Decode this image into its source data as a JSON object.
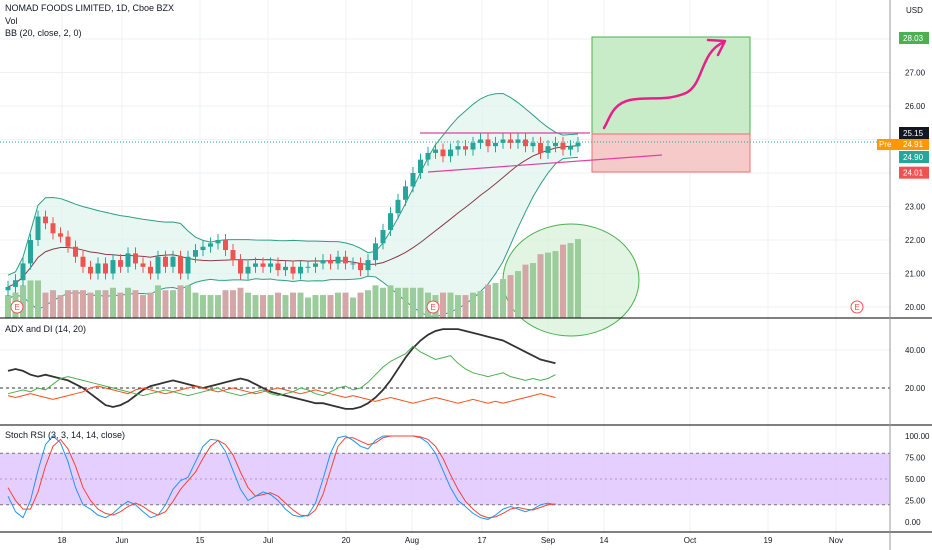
{
  "header": {
    "symbol_line": "NOMAD FOODS LIMITED, 1D, Cboe BZX",
    "vol_label": "Vol",
    "bb_label": "BB (20, close, 2, 0)",
    "currency": "USD"
  },
  "tags": {
    "target": "28.03",
    "resistance": "25.15",
    "pre_label": "Pre",
    "pre_value": "24.91",
    "last": "24.90",
    "stop": "24.01"
  },
  "colors": {
    "up": "#26a69a",
    "down": "#ef5350",
    "vol_up": "#9ccc9c",
    "vol_down": "#d4a7a7",
    "bb_band": "#2e9e85",
    "bb_basis": "#8b3a48",
    "trendline": "#e040a0",
    "adx": "#333333",
    "di_plus": "#4caf50",
    "di_minus": "#f4511e",
    "stoch_k": "#2196f3",
    "stoch_d": "#f44336",
    "rsi_band": "#e1c7ff"
  },
  "chart_data": [
    {
      "type": "candlestick",
      "title": "NOMAD FOODS LIMITED, 1D, Cboe BZX",
      "ylim": [
        19.8,
        28.2
      ],
      "y_ticks": [
        "20.00",
        "21.00",
        "22.00",
        "23.00",
        "24.00",
        "25.00",
        "26.00",
        "27.00",
        "28.00"
      ],
      "x_ticks": [
        "18",
        "Jun",
        "15",
        "Jul",
        "20",
        "Aug",
        "17",
        "Sep",
        "14",
        "Oct",
        "19",
        "Nov"
      ],
      "price_close": [
        20.6,
        20.8,
        21.3,
        22.0,
        22.7,
        22.5,
        22.2,
        22.1,
        21.8,
        21.5,
        21.2,
        21.0,
        21.3,
        21.0,
        21.4,
        21.2,
        21.6,
        21.3,
        21.2,
        21.0,
        21.5,
        21.2,
        21.5,
        21.0,
        21.5,
        21.7,
        21.8,
        21.9,
        22.0,
        21.7,
        21.4,
        21.0,
        21.2,
        21.3,
        21.2,
        21.3,
        21.1,
        21.2,
        21.0,
        21.2,
        21.2,
        21.3,
        21.4,
        21.3,
        21.5,
        21.3,
        21.3,
        21.1,
        21.4,
        21.9,
        22.3,
        22.8,
        23.2,
        23.6,
        24.0,
        24.4,
        24.6,
        24.7,
        24.5,
        24.7,
        24.8,
        24.7,
        24.9,
        25.0,
        24.8,
        24.9,
        25.0,
        24.9,
        25.0,
        24.8,
        24.9,
        24.6,
        24.8,
        24.9,
        24.7,
        24.8,
        24.9
      ]
    },
    {
      "type": "line",
      "title": "ADX and DI (14, 20)",
      "ylim": [
        0,
        55
      ],
      "y_ticks": [
        "20.00",
        "40.00"
      ],
      "series": [
        {
          "key": "adx",
          "values": [
            29,
            30,
            29,
            27,
            26,
            27,
            26,
            25,
            24,
            22,
            20,
            17,
            14,
            11,
            10,
            11,
            13,
            16,
            19,
            21,
            22,
            23,
            24,
            23,
            22,
            21,
            20,
            21,
            22,
            23,
            24,
            25,
            24,
            22,
            20,
            18,
            17,
            16,
            15,
            14,
            13,
            12,
            12,
            11,
            10,
            9,
            9,
            10,
            12,
            15,
            19,
            24,
            30,
            36,
            41,
            45,
            48,
            50,
            51,
            51,
            51,
            50,
            49,
            48,
            47,
            46,
            45,
            43,
            41,
            39,
            37,
            35,
            34,
            33
          ]
        },
        {
          "key": "di_plus",
          "values": [
            17,
            18,
            19,
            18,
            20,
            19,
            22,
            25,
            26,
            25,
            24,
            23,
            22,
            21,
            20,
            19,
            18,
            17,
            16,
            17,
            18,
            19,
            18,
            17,
            16,
            17,
            18,
            19,
            20,
            18,
            17,
            16,
            17,
            18,
            19,
            17,
            16,
            17,
            18,
            20,
            19,
            17,
            16,
            18,
            20,
            21,
            19,
            20,
            23,
            27,
            31,
            34,
            36,
            38,
            42,
            39,
            37,
            35,
            36,
            37,
            33,
            30,
            28,
            27,
            26,
            27,
            28,
            26,
            25,
            24,
            25,
            24,
            25,
            27
          ]
        },
        {
          "key": "di_minus",
          "values": [
            16,
            15,
            16,
            17,
            16,
            15,
            14,
            15,
            16,
            17,
            18,
            20,
            21,
            20,
            19,
            18,
            17,
            19,
            20,
            19,
            18,
            17,
            18,
            19,
            20,
            21,
            20,
            19,
            18,
            19,
            20,
            19,
            18,
            17,
            18,
            19,
            20,
            19,
            18,
            17,
            18,
            19,
            18,
            17,
            16,
            15,
            16,
            15,
            14,
            13,
            14,
            15,
            14,
            13,
            12,
            13,
            14,
            15,
            14,
            13,
            12,
            13,
            14,
            13,
            12,
            13,
            12,
            13,
            14,
            15,
            16,
            17,
            16,
            15
          ]
        }
      ]
    },
    {
      "type": "line",
      "title": "Stoch RSI (3, 3, 14, 14, close)",
      "ylim": [
        -5,
        105
      ],
      "y_ticks": [
        "0.00",
        "25.00",
        "50.00",
        "75.00",
        "100.00"
      ],
      "band": [
        20,
        80
      ],
      "series": [
        {
          "key": "stoch_k",
          "values": [
            30,
            12,
            5,
            25,
            60,
            90,
            100,
            92,
            70,
            40,
            20,
            15,
            8,
            5,
            10,
            18,
            24,
            20,
            12,
            5,
            8,
            20,
            38,
            48,
            52,
            70,
            88,
            96,
            95,
            82,
            60,
            38,
            25,
            30,
            35,
            32,
            25,
            15,
            8,
            6,
            8,
            22,
            50,
            80,
            98,
            100,
            95,
            88,
            85,
            95,
            100,
            100,
            100,
            100,
            100,
            98,
            92,
            80,
            60,
            40,
            25,
            18,
            10,
            5,
            3,
            8,
            15,
            18,
            15,
            12,
            15,
            20,
            22,
            20
          ]
        },
        {
          "key": "stoch_d",
          "values": [
            40,
            25,
            15,
            15,
            35,
            65,
            88,
            96,
            85,
            65,
            40,
            25,
            15,
            10,
            8,
            12,
            18,
            22,
            18,
            12,
            8,
            12,
            24,
            38,
            48,
            58,
            74,
            88,
            95,
            90,
            78,
            58,
            40,
            30,
            32,
            34,
            30,
            22,
            14,
            8,
            7,
            14,
            32,
            60,
            88,
            98,
            98,
            94,
            90,
            92,
            98,
            100,
            100,
            100,
            100,
            99,
            96,
            88,
            74,
            55,
            38,
            24,
            15,
            8,
            5,
            6,
            10,
            15,
            17,
            15,
            14,
            17,
            20,
            21
          ]
        }
      ]
    }
  ]
}
